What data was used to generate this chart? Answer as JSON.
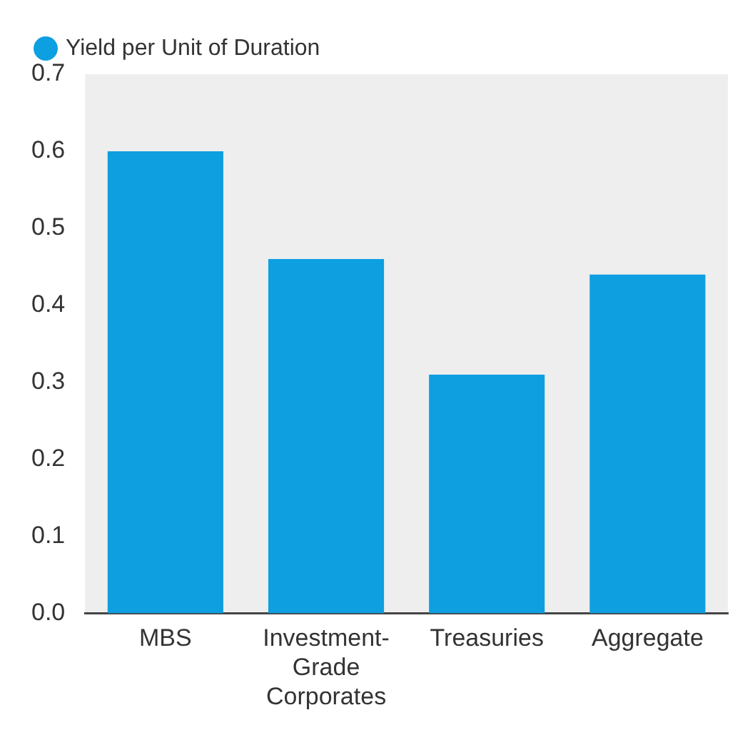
{
  "chart_data": {
    "type": "bar",
    "categories": [
      "MBS",
      "Investment-Grade Corporates",
      "Treasuries",
      "Aggregate"
    ],
    "series": [
      {
        "name": "Yield per Unit of Duration",
        "color": "#0d9fe0",
        "values": [
          0.6,
          0.46,
          0.31,
          0.44
        ]
      }
    ],
    "ylim": [
      0,
      0.7
    ],
    "yticks": [
      {
        "value": 0,
        "label": "0.0"
      },
      {
        "value": 0.1,
        "label": "0.1"
      },
      {
        "value": 0.2,
        "label": "0.2"
      },
      {
        "value": 0.3,
        "label": "0.3"
      },
      {
        "value": 0.4,
        "label": "0.4"
      },
      {
        "value": 0.5,
        "label": "0.5"
      },
      {
        "value": 0.6,
        "label": "0.6"
      },
      {
        "value": 0.7,
        "label": "0.7"
      }
    ],
    "grid": false,
    "legend": "top left"
  }
}
